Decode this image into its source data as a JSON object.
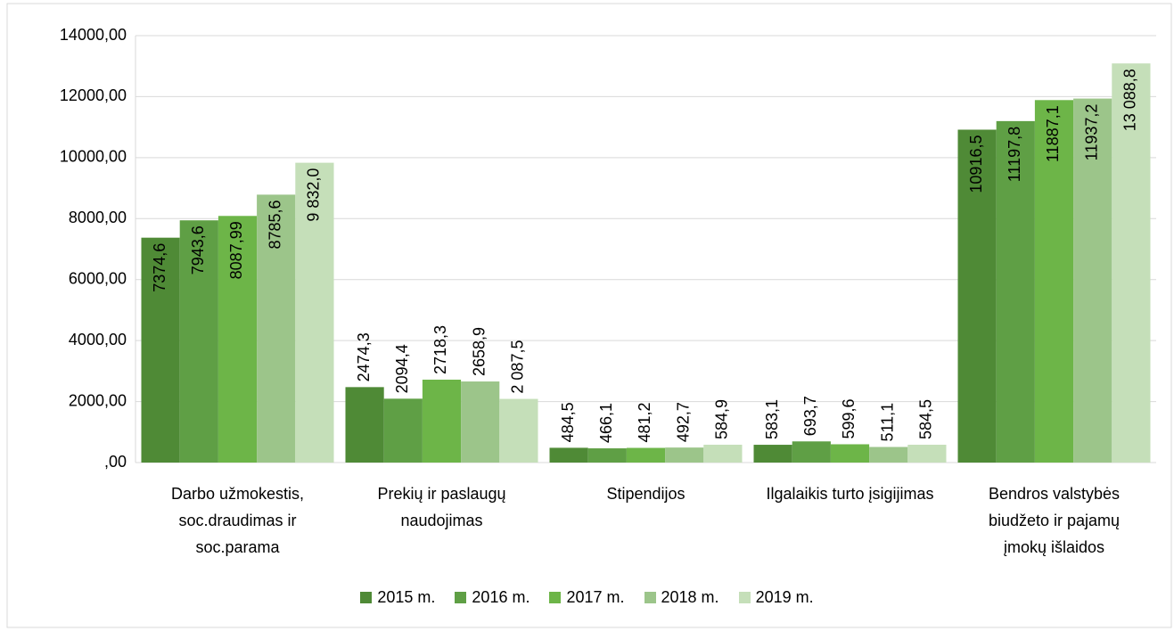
{
  "chart_data": {
    "type": "bar",
    "categories": [
      "Darbo užmokestis, soc.draudimas ir soc.parama",
      "Prekių ir paslaugų naudojimas",
      "Stipendijos",
      "Ilgalaikis turto įsigijimas",
      "Bendros valstybės biudžeto ir pajamų įmokų išlaidos"
    ],
    "series": [
      {
        "name": "2015 m.",
        "color": "#4f8a36",
        "values": [
          7374.6,
          2474.3,
          484.5,
          583.1,
          10916.5
        ],
        "value_labels": [
          "7374,6",
          "2474,3",
          "484,5",
          "583,1",
          "10916,5"
        ]
      },
      {
        "name": "2016 m.",
        "color": "#5f9f45",
        "values": [
          7943.6,
          2094.4,
          466.1,
          693.7,
          11197.8
        ],
        "value_labels": [
          "7943,6",
          "2094,4",
          "466,1",
          "693,7",
          "11197,8"
        ]
      },
      {
        "name": "2017 m.",
        "color": "#6db548",
        "values": [
          8087.99,
          2718.3,
          481.2,
          599.6,
          11887.1
        ],
        "value_labels": [
          "8087,99",
          "2718,3",
          "481,2",
          "599,6",
          "11887,1"
        ]
      },
      {
        "name": "2018 m.",
        "color": "#9cc58a",
        "values": [
          8785.6,
          2658.9,
          492.7,
          511.1,
          11937.2
        ],
        "value_labels": [
          "8785,6",
          "2658,9",
          "492,7",
          "511,1",
          "11937,2"
        ]
      },
      {
        "name": "2019 m.",
        "color": "#c5dfb9",
        "values": [
          9832.0,
          2087.5,
          584.9,
          584.5,
          13088.8
        ],
        "value_labels": [
          "9 832,0",
          "2 087,5",
          "584,9",
          "584,5",
          "13 088,8"
        ]
      }
    ],
    "ylim": [
      0,
      14000
    ],
    "yticks": [
      {
        "value": 0,
        "label": ",00"
      },
      {
        "value": 2000,
        "label": "2000,00"
      },
      {
        "value": 4000,
        "label": "4000,00"
      },
      {
        "value": 6000,
        "label": "6000,00"
      },
      {
        "value": 8000,
        "label": "8000,00"
      },
      {
        "value": 10000,
        "label": "10000,00"
      },
      {
        "value": 12000,
        "label": "12000,00"
      },
      {
        "value": 14000,
        "label": "14000,00"
      }
    ],
    "grid": true,
    "legend": "bottom"
  }
}
